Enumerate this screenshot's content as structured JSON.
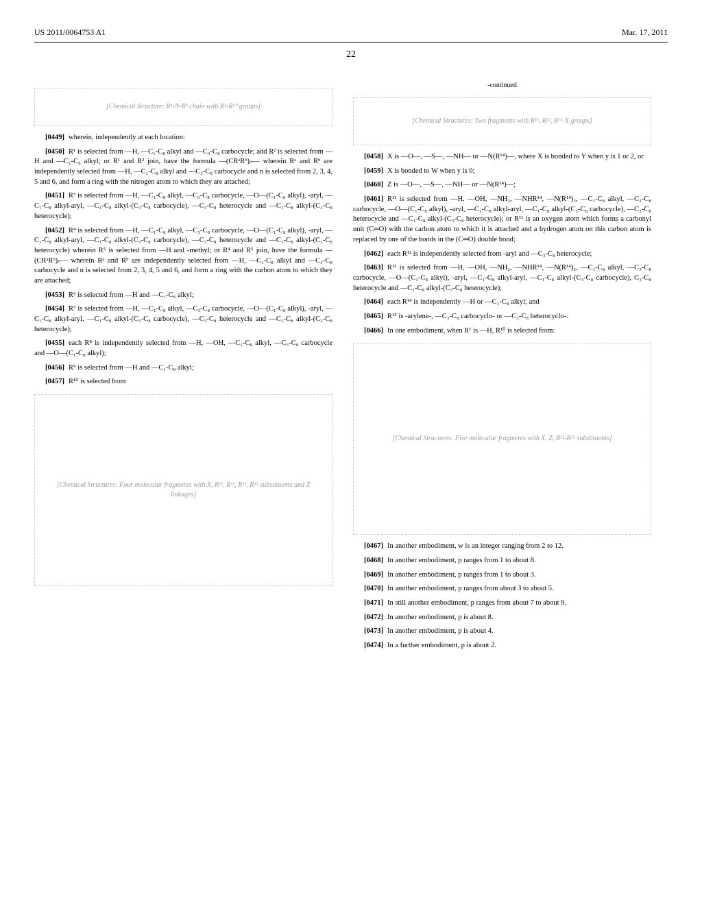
{
  "header": {
    "pub_number": "US 2011/0064753 A1",
    "pub_date": "Mar. 17, 2011"
  },
  "page_number": "22",
  "left_column": {
    "structure1_placeholder": "[Chemical Structure: R¹-N-R² chain with R³-R¹⁰ groups]",
    "paras": [
      {
        "num": "[0449]",
        "text": "wherein, independently at each location:"
      },
      {
        "num": "[0450]",
        "text": "R¹ is selected from —H, —C₁-C₈ alkyl and —C₃-C₈ carbocycle; and R² is selected from —H and —C₁-C₈ alkyl; or R¹ and R² join, have the formula —(CRᵃRᵇ)ₙ— wherein Rᵃ and Rᵇ are independently selected from —H, —C₁-C₈ alkyl and —C₃-C₈ carbocycle and n is selected from 2, 3, 4, 5 and 6, and form a ring with the nitrogen atom to which they are attached;"
      },
      {
        "num": "[0451]",
        "text": "R³ is selected from —H, —C₁-C₈ alkyl, —C₃-C₈ carbocycle, —O—(C₁-C₈ alkyl), -aryl, —C₁-C₈ alkyl-aryl, —C₁-C₈ alkyl-(C₃-C₈ carbocycle), —C₃-C₈ heterocycle and —C₁-C₈ alkyl-(C₃-C₈ heterocycle);"
      },
      {
        "num": "[0452]",
        "text": "R⁴ is selected from —H, —C₁-C₈ alkyl, —C₃-C₈ carbocycle, —O—(C₁-C₈ alkyl), -aryl, —C₁-C₈ alkyl-aryl, —C₁-C₈ alkyl-(C₃-C₈ carbocycle), —C₃-C₈ heterocycle and —C₁-C₈ alkyl-(C₃-C₈ heterocycle) wherein R⁵ is selected from —H and -methyl; or R⁴ and R⁵ join, have the formula —(CRᵃRᵇ)ₙ— wherein Rᵃ and Rᵇ are independently selected from —H, —C₁-C₈ alkyl and —C₃-C₈ carbocycle and n is selected from 2, 3, 4, 5 and 6, and form a ring with the carbon atom to which they are attached;"
      },
      {
        "num": "[0453]",
        "text": "R⁶ is selected from —H and —C₁-C₈ alkyl;"
      },
      {
        "num": "[0454]",
        "text": "R⁷ is selected from —H, —C₁-C₈ alkyl, —C₃-C₈ carbocycle, —O—(C₁-C₈ alkyl), -aryl, —C₁-C₈ alkyl-aryl, —C₁-C₈ alkyl-(C₃-C₈ carbocycle), —C₃-C₈ heterocycle and —C₁-C₈ alkyl-(C₃-C₈ heterocycle);"
      },
      {
        "num": "[0455]",
        "text": "each R⁸ is independently selected from —H, —OH, —C₁-C₈ alkyl, —C₃-C₈ carbocycle and —O—(C₁-C₈ alkyl);"
      },
      {
        "num": "[0456]",
        "text": "R⁹ is selected from —H and —C₁-C₈ alkyl;"
      },
      {
        "num": "[0457]",
        "text": "R¹⁰ is selected from"
      }
    ],
    "structure2_placeholder": "[Chemical Structures: Four molecular fragments with X, R¹¹, R¹², R¹³, R¹⁵ substituents and Z linkages]"
  },
  "right_column": {
    "continued_label": "-continued",
    "structure3_placeholder": "[Chemical Structures: Two fragments with R¹¹, R¹², R¹⁵-X groups]",
    "paras_top": [
      {
        "num": "[0458]",
        "text": "X is —O—, —S—, —NH— or —N(R¹⁴)—, where X is bonded to Y when y is 1 or 2, or"
      },
      {
        "num": "[0459]",
        "text": "X is bonded to W when y is 0;"
      },
      {
        "num": "[0460]",
        "text": "Z is —O—, —S—, —NH— or —N(R¹⁴)—;"
      },
      {
        "num": "[0461]",
        "text": "R¹¹ is selected from —H, —OH, —NH₂, —NHR¹⁴, —N(R¹⁴)₂, —C₁-C₈ alkyl, —C₃-C₈ carbocycle, —O—(C₁-C₈ alkyl), -aryl, —C₁-C₈ alkyl-aryl, —C₁-C₈ alkyl-(C₃-C₈ carbocycle), —C₃-C₈ heterocycle and —C₁-C₈ alkyl-(C₃-C₈ heterocycle); or R¹¹ is an oxygen atom which forms a carbonyl unit (C═O) with the carbon atom to which it is attached and a hydrogen atom on this carbon atom is replaced by one of the bonds in the (C═O) double bond;"
      },
      {
        "num": "[0462]",
        "text": "each R¹² is independently selected from -aryl and —C₃-C₈ heterocycle;"
      },
      {
        "num": "[0463]",
        "text": "R¹³ is selected from —H, —OH, —NH₂, —NHR¹⁴, —N(R¹⁴)₂, —C₁-C₈ alkyl, —C₃-C₈ carbocycle, —O—(C₁-C₈ alkyl), -aryl, —C₁-C₈ alkyl-aryl, —C₁-C₈ alkyl-(C₃-C₈ carbocycle), C₃-C₈ heterocycle and —C₁-C₈ alkyl-(C₃-C₈ heterocycle);"
      },
      {
        "num": "[0464]",
        "text": "each R¹⁴ is independently —H or —C₁-C₈ alkyl; and"
      },
      {
        "num": "[0465]",
        "text": "R¹⁵ is -arylene-, —C₃-C₈ carbocyclo- or —C₃-C₈ heterocyclo-."
      },
      {
        "num": "[0466]",
        "text": "In one embodiment, when R¹ is —H, R¹⁰ is selected from:"
      }
    ],
    "structure4_placeholder": "[Chemical Structures: Five molecular fragments with X, Z, R¹¹-R¹⁵ substituents]",
    "paras_bottom": [
      {
        "num": "[0467]",
        "text": "In another embodiment, w is an integer ranging from 2 to 12."
      },
      {
        "num": "[0468]",
        "text": "In another embodiment, p ranges from 1 to about 8."
      },
      {
        "num": "[0469]",
        "text": "In another embodiment, p ranges from 1 to about 3."
      },
      {
        "num": "[0470]",
        "text": "In another embodiment, p ranges from about 3 to about 5."
      },
      {
        "num": "[0471]",
        "text": "In still another embodiment, p ranges from about 7 to about 9."
      },
      {
        "num": "[0472]",
        "text": "In another embodiment, p is about 8."
      },
      {
        "num": "[0473]",
        "text": "In another embodiment, p is about 4."
      },
      {
        "num": "[0474]",
        "text": "In a further embodiment, p is about 2."
      }
    ]
  }
}
